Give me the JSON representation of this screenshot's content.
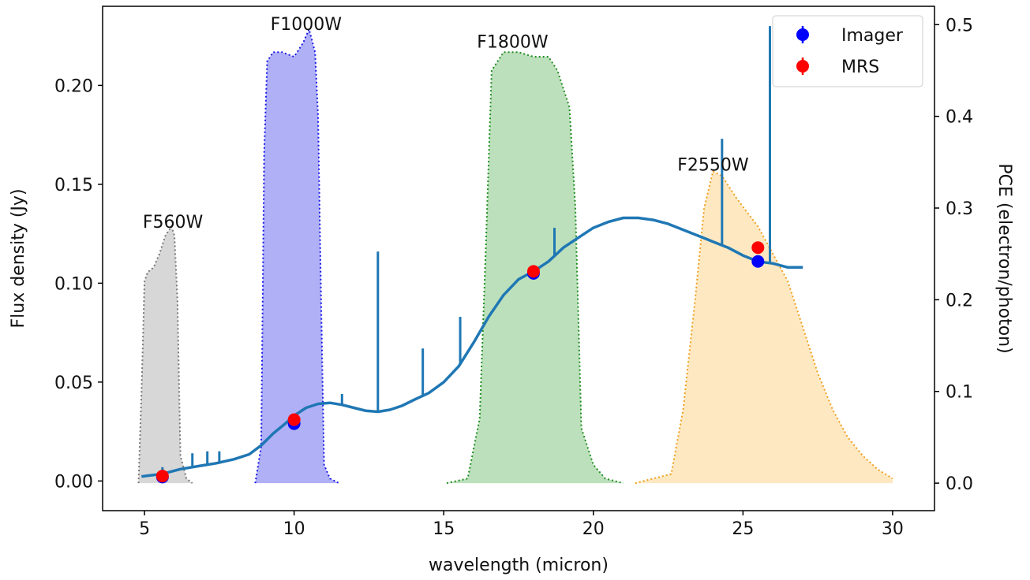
{
  "chart_data": {
    "type": "line",
    "xlabel": "wavelength (micron)",
    "ylabel": "Flux density (Jy)",
    "y2label": "PCE (electron/photon)",
    "xlim": [
      3.6,
      31.4
    ],
    "ylim": [
      -0.015,
      0.24
    ],
    "y2lim": [
      -0.03,
      0.52
    ],
    "xticks": [
      5,
      10,
      15,
      20,
      25,
      30
    ],
    "yticks": [
      0.0,
      0.05,
      0.1,
      0.15,
      0.2
    ],
    "y2ticks": [
      0.0,
      0.1,
      0.2,
      0.3,
      0.4,
      0.5
    ],
    "xtick_labels": [
      "5",
      "10",
      "15",
      "20",
      "25",
      "30"
    ],
    "ytick_labels": [
      "0.00",
      "0.05",
      "0.10",
      "0.15",
      "0.20"
    ],
    "y2tick_labels": [
      "0.0",
      "0.1",
      "0.2",
      "0.3",
      "0.4",
      "0.5"
    ],
    "grid": false,
    "legend_position": "top-right",
    "filters": [
      {
        "label": "F560W",
        "color": "#bdbdbd",
        "edge": "#777777",
        "x": [
          4.8,
          4.9,
          5.0,
          5.1,
          5.3,
          5.5,
          5.7,
          5.9,
          6.0,
          6.1,
          6.2,
          6.4,
          6.6
        ],
        "y": [
          0.0,
          0.1,
          0.22,
          0.23,
          0.235,
          0.25,
          0.27,
          0.28,
          0.27,
          0.2,
          0.03,
          0.005,
          0.0
        ]
      },
      {
        "label": "F1000W",
        "color": "#7b7bf0",
        "edge": "#1a1ae6",
        "x": [
          8.7,
          8.9,
          9.0,
          9.1,
          9.3,
          9.6,
          10.0,
          10.3,
          10.5,
          10.7,
          10.8,
          10.9,
          11.0,
          11.2,
          11.5
        ],
        "y": [
          0.0,
          0.04,
          0.36,
          0.46,
          0.47,
          0.47,
          0.465,
          0.48,
          0.495,
          0.47,
          0.4,
          0.2,
          0.02,
          0.005,
          0.0
        ]
      },
      {
        "label": "F1800W",
        "color": "#8fcc8f",
        "edge": "#1f8c1f",
        "x": [
          15.1,
          15.8,
          16.2,
          16.4,
          16.6,
          17.0,
          17.5,
          18.0,
          18.5,
          18.8,
          19.0,
          19.2,
          19.4,
          19.6,
          20.0,
          20.4,
          21.0
        ],
        "y": [
          0.0,
          0.005,
          0.07,
          0.25,
          0.45,
          0.47,
          0.47,
          0.465,
          0.465,
          0.45,
          0.43,
          0.41,
          0.3,
          0.06,
          0.02,
          0.005,
          0.0
        ]
      },
      {
        "label": "F2550W",
        "color": "#fcd99a",
        "edge": "#f0a020",
        "x": [
          21.4,
          22.0,
          22.6,
          23.0,
          23.4,
          23.7,
          24.0,
          24.3,
          24.8,
          25.5,
          26.0,
          26.5,
          27.0,
          27.5,
          28.0,
          28.5,
          29.0,
          29.5,
          30.0
        ],
        "y": [
          0.0,
          0.005,
          0.01,
          0.08,
          0.2,
          0.3,
          0.34,
          0.335,
          0.31,
          0.28,
          0.25,
          0.22,
          0.17,
          0.12,
          0.08,
          0.05,
          0.03,
          0.015,
          0.005
        ]
      }
    ],
    "filter_label_positions": [
      {
        "label": "F560W",
        "x": 5.95,
        "y": 0.128
      },
      {
        "label": "F1000W",
        "x": 10.4,
        "y": 0.228
      },
      {
        "label": "F1800W",
        "x": 17.3,
        "y": 0.219
      },
      {
        "label": "F2550W",
        "x": 24.0,
        "y": 0.157
      }
    ],
    "spectrum": {
      "color": "#1f77b4",
      "x": [
        4.9,
        5.3,
        5.7,
        6.2,
        6.8,
        7.4,
        8.0,
        8.5,
        8.9,
        9.3,
        9.7,
        10.0,
        10.4,
        10.8,
        11.2,
        11.6,
        12.0,
        12.4,
        12.8,
        13.2,
        13.6,
        14.0,
        14.5,
        15.0,
        15.5,
        16.0,
        16.5,
        17.0,
        17.5,
        18.0,
        18.5,
        19.0,
        19.5,
        20.0,
        20.5,
        21.0,
        21.5,
        22.0,
        22.5,
        23.0,
        23.5,
        24.0,
        24.5,
        25.0,
        25.5,
        26.0,
        26.5,
        27.0
      ],
      "y": [
        0.0023,
        0.003,
        0.004,
        0.006,
        0.0075,
        0.009,
        0.011,
        0.0135,
        0.018,
        0.024,
        0.029,
        0.033,
        0.037,
        0.039,
        0.0395,
        0.0385,
        0.037,
        0.0355,
        0.035,
        0.036,
        0.038,
        0.041,
        0.0445,
        0.05,
        0.058,
        0.07,
        0.083,
        0.094,
        0.102,
        0.106,
        0.111,
        0.118,
        0.123,
        0.128,
        0.131,
        0.133,
        0.133,
        0.132,
        0.13,
        0.127,
        0.124,
        0.121,
        0.118,
        0.114,
        0.111,
        0.11,
        0.108,
        0.108
      ]
    },
    "spectrum_lines": [
      {
        "x": 5.6,
        "top": 0.007
      },
      {
        "x": 6.6,
        "top": 0.014
      },
      {
        "x": 7.1,
        "top": 0.015
      },
      {
        "x": 7.5,
        "top": 0.015
      },
      {
        "x": 11.6,
        "top": 0.044
      },
      {
        "x": 12.8,
        "top": 0.116
      },
      {
        "x": 14.3,
        "top": 0.067
      },
      {
        "x": 15.55,
        "top": 0.083
      },
      {
        "x": 18.7,
        "top": 0.128
      },
      {
        "x": 24.3,
        "top": 0.173
      },
      {
        "x": 25.9,
        "top": 0.23
      }
    ],
    "series": [
      {
        "name": "Imager",
        "color": "#0000ff",
        "points": [
          {
            "x": 5.6,
            "y": 0.002
          },
          {
            "x": 10.0,
            "y": 0.029
          },
          {
            "x": 18.0,
            "y": 0.105
          },
          {
            "x": 25.5,
            "y": 0.111
          }
        ]
      },
      {
        "name": "MRS",
        "color": "#ff0000",
        "points": [
          {
            "x": 5.6,
            "y": 0.0025
          },
          {
            "x": 10.0,
            "y": 0.031
          },
          {
            "x": 18.0,
            "y": 0.106
          },
          {
            "x": 25.5,
            "y": 0.118
          }
        ]
      }
    ]
  }
}
